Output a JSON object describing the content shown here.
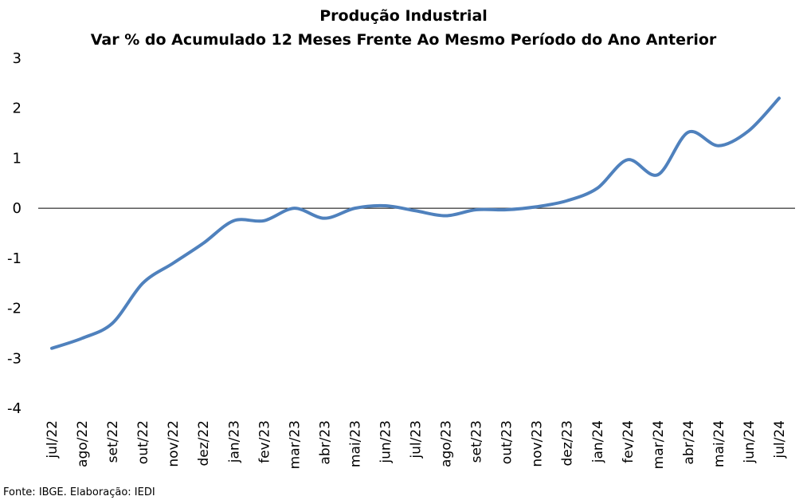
{
  "chart_data": {
    "type": "line",
    "title": "Produção Industrial",
    "subtitle": "Var % do Acumulado 12 Meses Frente Ao Mesmo Período do Ano Anterior",
    "xlabel": "",
    "ylabel": "",
    "ylim": [
      -4,
      3
    ],
    "yticks": [
      "3",
      "2",
      "1",
      "0",
      "-1",
      "-2",
      "-3",
      "-4"
    ],
    "categories": [
      "jul/22",
      "ago/22",
      "set/22",
      "out/22",
      "nov/22",
      "dez/22",
      "jan/23",
      "fev/23",
      "mar/23",
      "abr/23",
      "mai/23",
      "jun/23",
      "jul/23",
      "ago/23",
      "set/23",
      "out/23",
      "nov/23",
      "dez/23",
      "jan/24",
      "fev/24",
      "mar/24",
      "abr/24",
      "mai/24",
      "jun/24",
      "jul/24"
    ],
    "series": [
      {
        "values": [
          -2.8,
          -2.6,
          -2.3,
          -1.5,
          -1.1,
          -0.7,
          -0.25,
          -0.25,
          0.0,
          -0.2,
          0.0,
          0.05,
          -0.05,
          -0.15,
          -0.03,
          -0.03,
          0.03,
          0.15,
          0.4,
          0.97,
          0.67,
          1.52,
          1.25,
          1.55,
          2.2
        ],
        "color": "#4f81bd"
      }
    ],
    "grid": false,
    "zero_line": true
  },
  "footer": "Fonte: IBGE. Elaboração: IEDI"
}
